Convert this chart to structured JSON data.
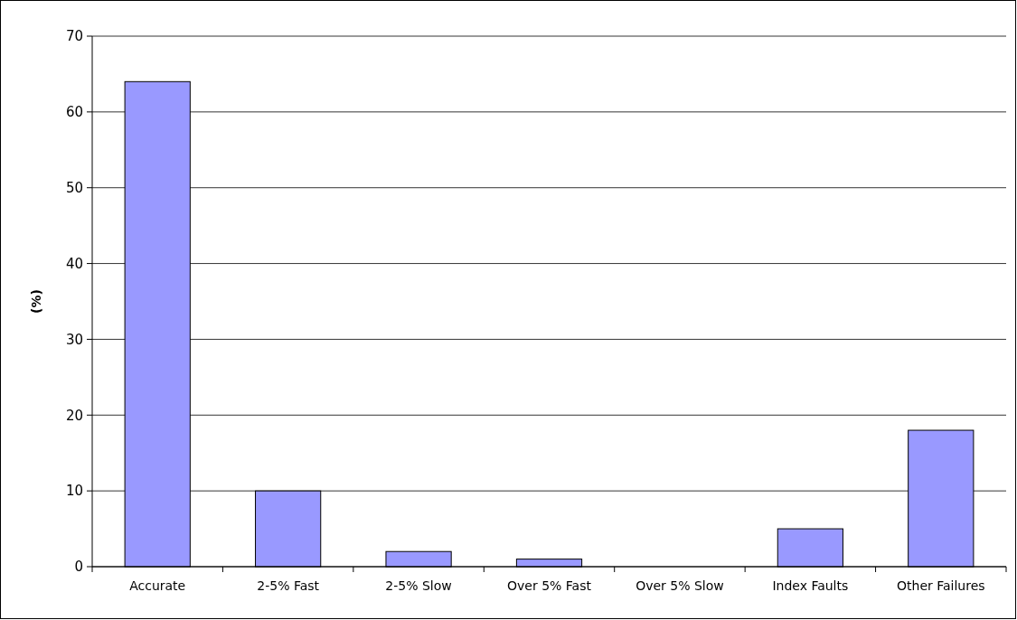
{
  "chart_data": {
    "type": "bar",
    "ylabel": "(%)",
    "categories": [
      "Accurate",
      "2-5% Fast",
      "2-5% Slow",
      "Over 5% Fast",
      "Over 5% Slow",
      "Index Faults",
      "Other Failures"
    ],
    "values": [
      64,
      10,
      2,
      1,
      0,
      5,
      18
    ],
    "color": "#9999ff",
    "ylim": [
      0,
      70
    ],
    "yticks": [
      0,
      10,
      20,
      30,
      40,
      50,
      60,
      70
    ],
    "grid": "y"
  }
}
